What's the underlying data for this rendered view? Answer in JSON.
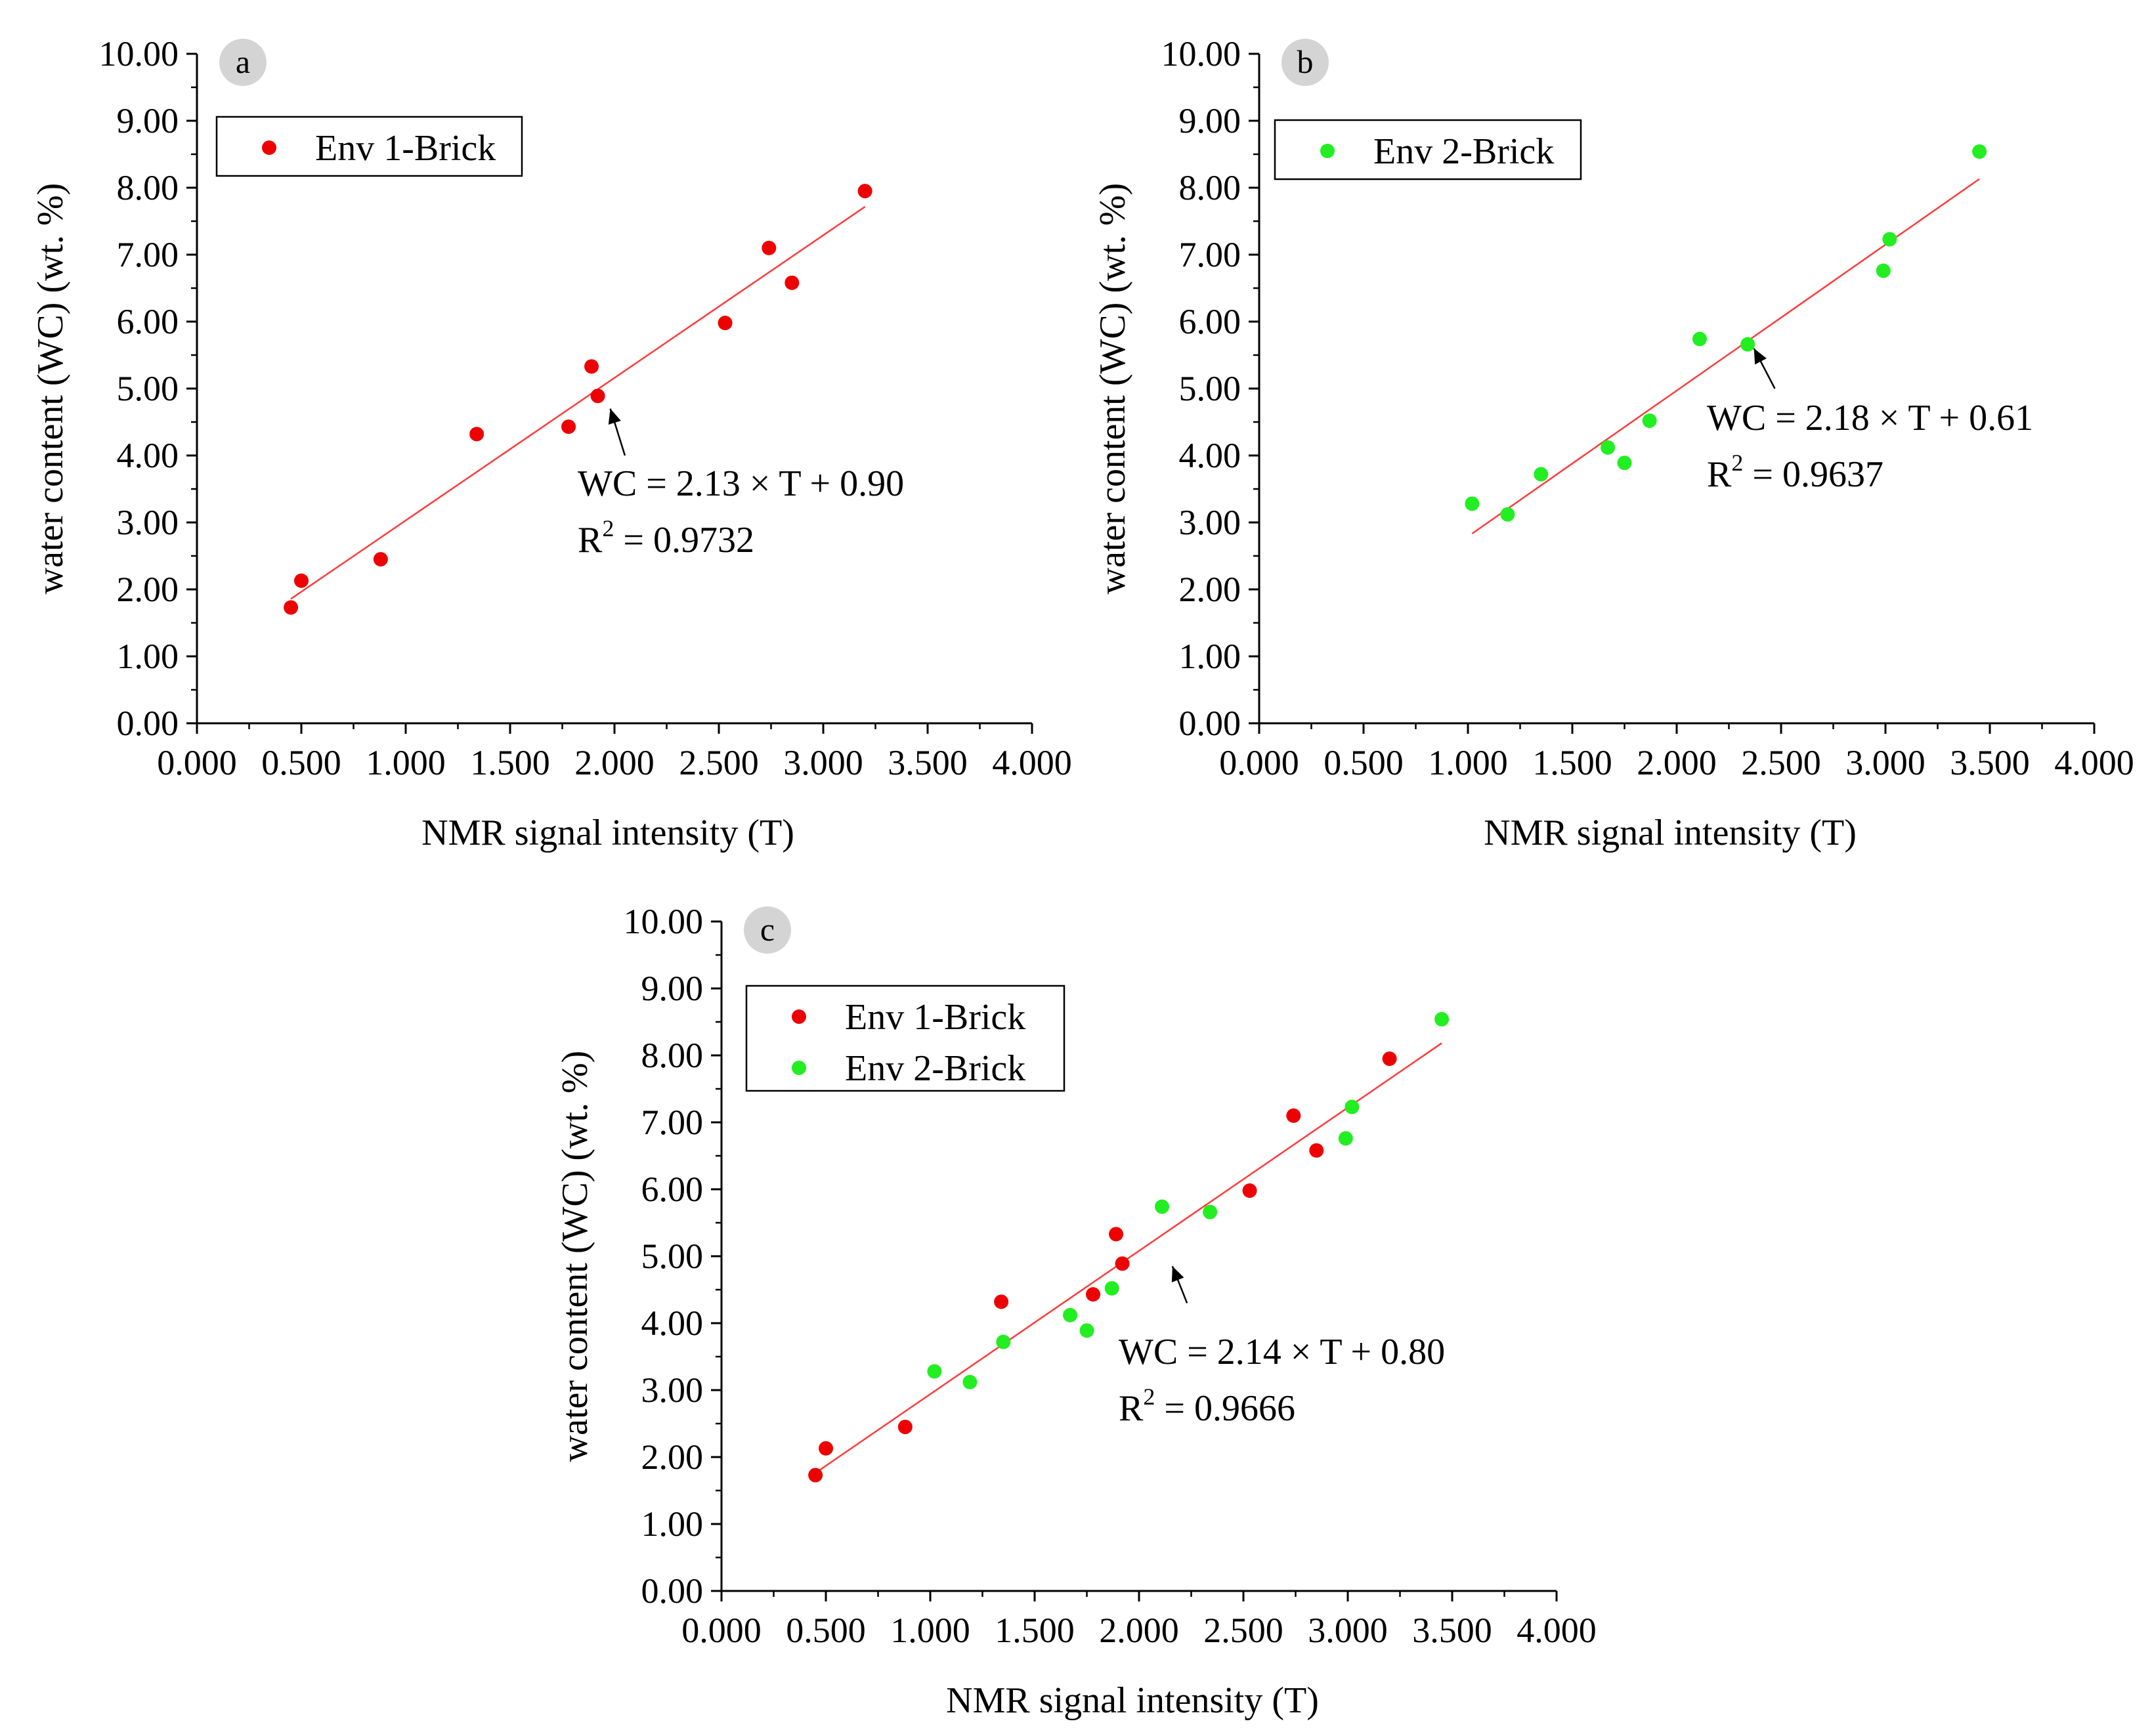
{
  "colors": {
    "series_red": "#ee0000",
    "series_green": "#22ee22",
    "fit_line": "#ff3b3b",
    "badge": "#d4d4d4"
  },
  "chart_data": [
    {
      "type": "scatter",
      "panel": "a",
      "xlabel": "NMR signal intensity (T)",
      "ylabel": "water content (WC) (wt. %)",
      "xlim": [
        0,
        4
      ],
      "ylim": [
        0,
        10
      ],
      "x_ticks": [
        "0.000",
        "0.500",
        "1.000",
        "1.500",
        "2.000",
        "2.500",
        "3.000",
        "3.500",
        "4.000"
      ],
      "y_ticks": [
        "0.00",
        "1.00",
        "2.00",
        "3.00",
        "4.00",
        "5.00",
        "6.00",
        "7.00",
        "8.00",
        "9.00",
        "10.00"
      ],
      "legend_position": "top-left",
      "series": [
        {
          "name": "Env 1-Brick",
          "color": "#ee0000",
          "x": [
            0.45,
            0.5,
            0.88,
            1.34,
            1.78,
            1.89,
            1.92,
            2.53,
            2.74,
            2.85,
            3.2
          ],
          "y": [
            1.73,
            2.13,
            2.45,
            4.32,
            4.43,
            5.33,
            4.89,
            5.98,
            7.1,
            6.58,
            7.95
          ]
        }
      ],
      "fit": {
        "slope": 2.13,
        "intercept": 0.9,
        "x_range": [
          0.45,
          3.2
        ]
      },
      "equation": "WC = 2.13 × T + 0.90",
      "r2_label": "R",
      "r2_exp": "2",
      "r2_value": " = 0.9732",
      "arrow": {
        "from": [
          2.05,
          4.0
        ],
        "to": [
          1.98,
          4.7
        ]
      }
    },
    {
      "type": "scatter",
      "panel": "b",
      "xlabel": "NMR signal intensity (T)",
      "ylabel": "water content (WC) (wt. %)",
      "xlim": [
        0,
        4
      ],
      "ylim": [
        0,
        10
      ],
      "x_ticks": [
        "0.000",
        "0.500",
        "1.000",
        "1.500",
        "2.000",
        "2.500",
        "3.000",
        "3.500",
        "4.000"
      ],
      "y_ticks": [
        "0.00",
        "1.00",
        "2.00",
        "3.00",
        "4.00",
        "5.00",
        "6.00",
        "7.00",
        "8.00",
        "9.00",
        "10.00"
      ],
      "legend_position": "top-left",
      "series": [
        {
          "name": "Env 2-Brick",
          "color": "#22ee22",
          "x": [
            1.02,
            1.19,
            1.35,
            1.67,
            1.75,
            1.87,
            2.11,
            2.34,
            2.99,
            3.02,
            3.45
          ],
          "y": [
            3.28,
            3.12,
            3.72,
            4.12,
            3.89,
            4.52,
            5.74,
            5.66,
            6.76,
            7.23,
            8.54
          ]
        }
      ],
      "fit": {
        "slope": 2.18,
        "intercept": 0.61,
        "x_range": [
          1.02,
          3.45
        ]
      },
      "equation": "WC = 2.18 × T + 0.61",
      "r2_label": "R",
      "r2_exp": "2",
      "r2_value": " = 0.9637",
      "arrow": {
        "from": [
          2.47,
          5.0
        ],
        "to": [
          2.37,
          5.6
        ]
      }
    },
    {
      "type": "scatter",
      "panel": "c",
      "xlabel": "NMR signal intensity (T)",
      "ylabel": "water content (WC) (wt. %)",
      "xlim": [
        0,
        4
      ],
      "ylim": [
        0,
        10
      ],
      "x_ticks": [
        "0.000",
        "0.500",
        "1.000",
        "1.500",
        "2.000",
        "2.500",
        "3.000",
        "3.500",
        "4.000"
      ],
      "y_ticks": [
        "0.00",
        "1.00",
        "2.00",
        "3.00",
        "4.00",
        "5.00",
        "6.00",
        "7.00",
        "8.00",
        "9.00",
        "10.00"
      ],
      "legend_position": "top-left",
      "series": [
        {
          "name": "Env 1-Brick",
          "color": "#ee0000",
          "x": [
            0.45,
            0.5,
            0.88,
            1.34,
            1.78,
            1.89,
            1.92,
            2.53,
            2.74,
            2.85,
            3.2
          ],
          "y": [
            1.73,
            2.13,
            2.45,
            4.32,
            4.43,
            5.33,
            4.89,
            5.98,
            7.1,
            6.58,
            7.95
          ]
        },
        {
          "name": "Env 2-Brick",
          "color": "#22ee22",
          "x": [
            1.02,
            1.19,
            1.35,
            1.67,
            1.75,
            1.87,
            2.11,
            2.34,
            2.99,
            3.02,
            3.45
          ],
          "y": [
            3.28,
            3.12,
            3.72,
            4.12,
            3.89,
            4.52,
            5.74,
            5.66,
            6.76,
            7.23,
            8.54
          ]
        }
      ],
      "fit": {
        "slope": 2.14,
        "intercept": 0.8,
        "x_range": [
          0.45,
          3.45
        ]
      },
      "equation": "WC = 2.14 × T + 0.80",
      "r2_label": "R",
      "r2_exp": "2",
      "r2_value": " = 0.9666",
      "arrow": {
        "from": [
          2.23,
          4.3
        ],
        "to": [
          2.16,
          4.85
        ]
      }
    }
  ]
}
